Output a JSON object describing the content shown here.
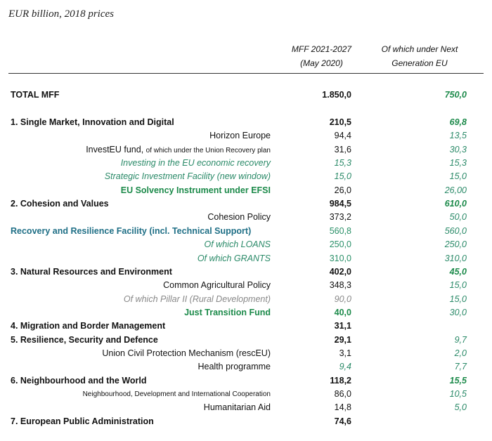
{
  "title": "EUR billion, 2018 prices",
  "headers": {
    "col1": [
      "MFF 2021-2027",
      "(May 2020)"
    ],
    "col2": [
      "Of which under Next",
      "Generation EU"
    ]
  },
  "colors": {
    "green": "#1c8a4a",
    "teal": "#1f6f86",
    "grey": "#888888"
  },
  "total": {
    "label": "TOTAL MFF",
    "mff": "1.850,0",
    "ngeu": "750,0"
  },
  "rows": [
    {
      "label": "1. Single Market, Innovation and Digital",
      "kind": "section",
      "ls": "",
      "mff": "210,5",
      "ms": "bold",
      "ngeu": "69,8",
      "ns": "gbi"
    },
    {
      "label": "Horizon Europe",
      "kind": "item",
      "ls": "",
      "mff": "94,4",
      "ms": "",
      "ngeu": "13,5",
      "ns": "gi"
    },
    {
      "label": "InvestEU fund,",
      "suffix": "of which under the Union Recovery plan",
      "kind": "item",
      "ls": "",
      "mff": "31,6",
      "ms": "",
      "ngeu": "30,3",
      "ns": "gi"
    },
    {
      "label": "Investing in the EU economic recovery",
      "kind": "item",
      "ls": "gi",
      "mff": "15,3",
      "ms": "gi",
      "ngeu": "15,3",
      "ns": "gi"
    },
    {
      "label": "Strategic Investment Facility (new window)",
      "kind": "item",
      "ls": "gi",
      "mff": "15,0",
      "ms": "gi",
      "ngeu": "15,0",
      "ns": "gi"
    },
    {
      "label": "EU Solvency Instrument under EFSI",
      "kind": "item",
      "ls": "gb",
      "mff": "26,0",
      "ms": "",
      "ngeu": "26,00",
      "ns": "gi"
    },
    {
      "label": "2. Cohesion and Values",
      "kind": "section",
      "ls": "",
      "mff": "984,5",
      "ms": "bold",
      "ngeu": "610,0",
      "ns": "gbi"
    },
    {
      "label": "Cohesion Policy",
      "kind": "item",
      "ls": "",
      "mff": "373,2",
      "ms": "",
      "ngeu": "50,0",
      "ns": "gi"
    },
    {
      "label": "Recovery and Resilience Facility (incl. Technical Support)",
      "kind": "left",
      "ls": "teal",
      "mff": "560,8",
      "ms": "tg",
      "ngeu": "560,0",
      "ns": "gi"
    },
    {
      "label": "Of which LOANS",
      "kind": "item",
      "ls": "gi",
      "mff": "250,0",
      "ms": "tg",
      "ngeu": "250,0",
      "ns": "gi"
    },
    {
      "label": "Of which GRANTS",
      "kind": "item",
      "ls": "gi",
      "mff": "310,0",
      "ms": "tg",
      "ngeu": "310,0",
      "ns": "gi"
    },
    {
      "label": "3. Natural Resources and Environment",
      "kind": "section",
      "ls": "",
      "mff": "402,0",
      "ms": "bold",
      "ngeu": "45,0",
      "ns": "gbi"
    },
    {
      "label": "Common Agricultural Policy",
      "kind": "item",
      "ls": "",
      "mff": "348,3",
      "ms": "",
      "ngeu": "15,0",
      "ns": "gi"
    },
    {
      "label": "Of which Pillar II (Rural Development)",
      "kind": "item",
      "ls": "gr",
      "mff": "90,0",
      "ms": "gr",
      "ngeu": "15,0",
      "ns": "gi"
    },
    {
      "label": "Just Transition Fund",
      "kind": "item",
      "ls": "gb",
      "mff": "40,0",
      "ms": "gb",
      "ngeu": "30,0",
      "ns": "gi"
    },
    {
      "label": "4. Migration and Border Management",
      "kind": "section",
      "ls": "",
      "mff": "31,1",
      "ms": "bold",
      "ngeu": "",
      "ns": ""
    },
    {
      "label": "5. Resilience, Security and Defence",
      "kind": "section",
      "ls": "",
      "mff": "29,1",
      "ms": "bold",
      "ngeu": "9,7",
      "ns": "gi"
    },
    {
      "label": "Union Civil Protection Mechanism (rescEU)",
      "kind": "item",
      "ls": "",
      "mff": "3,1",
      "ms": "",
      "ngeu": "2,0",
      "ns": "gi"
    },
    {
      "label": "Health programme",
      "kind": "item",
      "ls": "",
      "mff": "9,4",
      "ms": "gi",
      "ngeu": "7,7",
      "ns": "gi"
    },
    {
      "label": "6. Neighbourhood and the World",
      "kind": "section",
      "ls": "",
      "mff": "118,2",
      "ms": "bold",
      "ngeu": "15,5",
      "ns": "gbi"
    },
    {
      "label": "Neighbourhood, Development and International Cooperation",
      "kind": "item",
      "ls": "small",
      "mff": "86,0",
      "ms": "",
      "ngeu": "10,5",
      "ns": "gi"
    },
    {
      "label": "Humanitarian Aid",
      "kind": "item",
      "ls": "",
      "mff": "14,8",
      "ms": "",
      "ngeu": "5,0",
      "ns": "gi"
    },
    {
      "label": "7. European Public Administration",
      "kind": "section",
      "ls": "",
      "mff": "74,6",
      "ms": "bold",
      "ngeu": "",
      "ns": ""
    }
  ]
}
